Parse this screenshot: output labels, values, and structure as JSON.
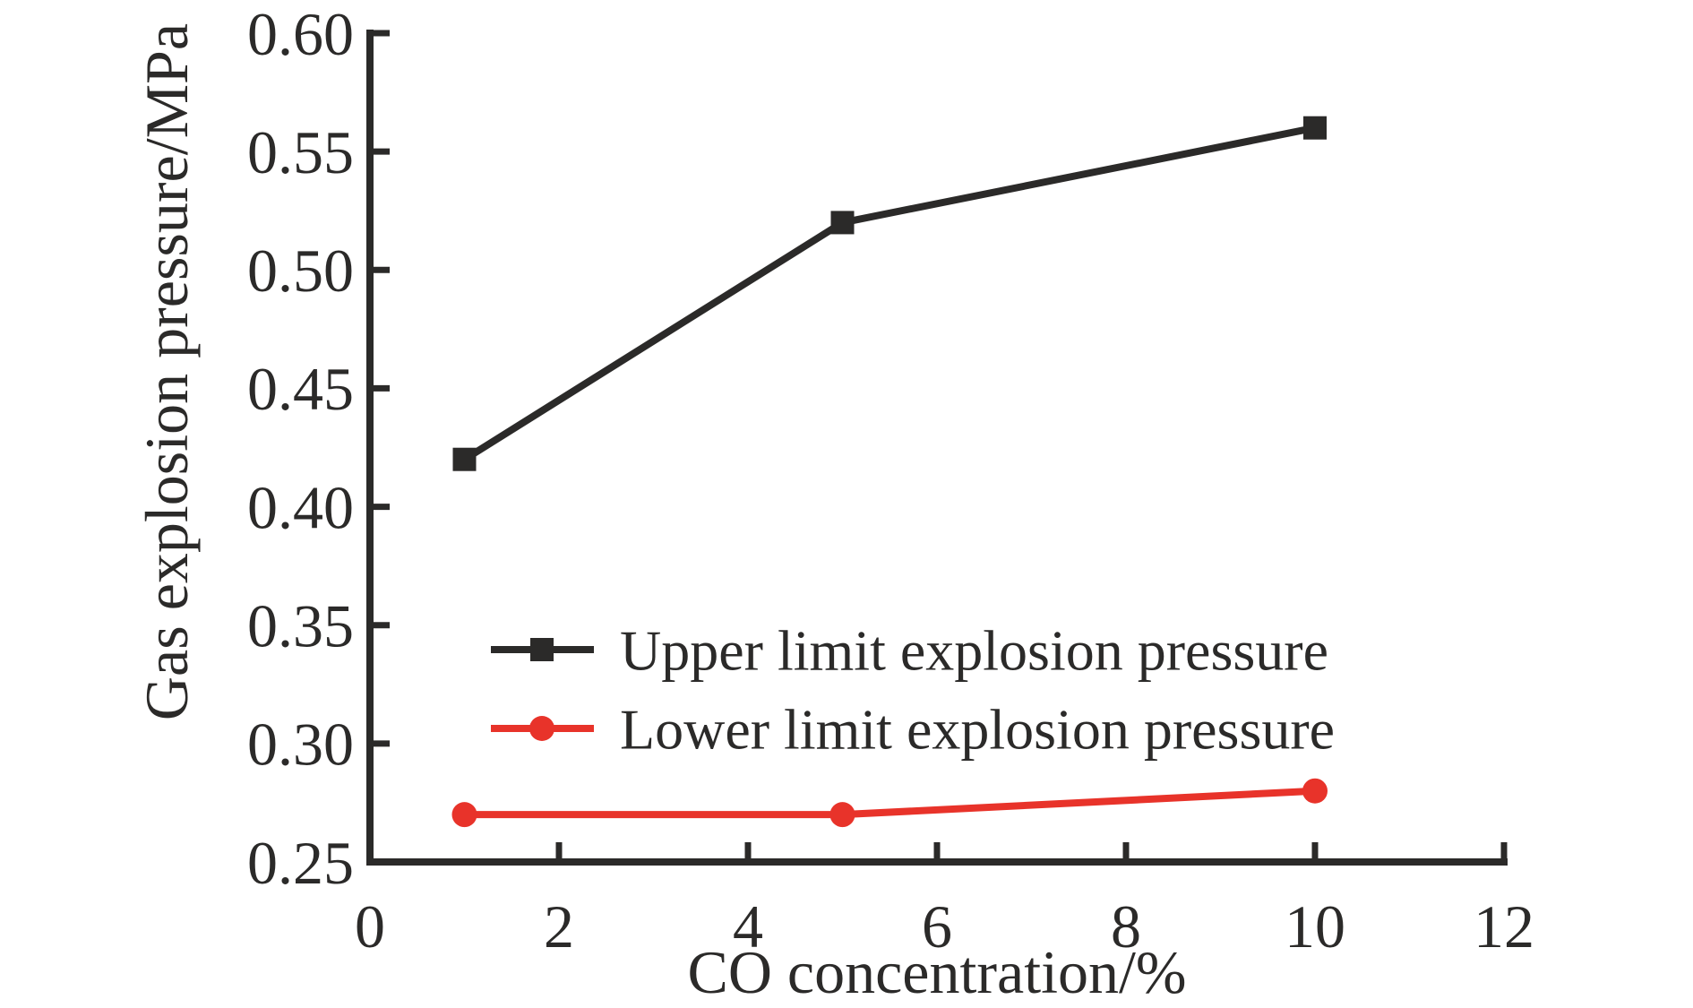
{
  "chart_data": {
    "type": "line",
    "title": "",
    "xlabel": "CO concentration/%",
    "ylabel": "Gas explosion pressure/MPa",
    "xlim": [
      0,
      12
    ],
    "ylim": [
      0.25,
      0.6
    ],
    "x_ticks": [
      0,
      2,
      4,
      6,
      8,
      10,
      12
    ],
    "y_ticks": [
      0.25,
      0.3,
      0.35,
      0.4,
      0.45,
      0.5,
      0.55,
      0.6
    ],
    "y_tick_decimals": 2,
    "grid": false,
    "legend_position": "inside-lower-left",
    "axis_color": "#2b2a29",
    "text_color": "#2b2a29",
    "background_color": "#ffffff",
    "series": [
      {
        "name": "Upper limit explosion pressure",
        "marker": "square",
        "color": "#2b2a29",
        "x": [
          1,
          5,
          10
        ],
        "y": [
          0.42,
          0.52,
          0.56
        ]
      },
      {
        "name": "Lower limit explosion pressure",
        "marker": "circle",
        "color": "#e8332a",
        "x": [
          1,
          5,
          10
        ],
        "y": [
          0.27,
          0.27,
          0.28
        ]
      }
    ]
  }
}
